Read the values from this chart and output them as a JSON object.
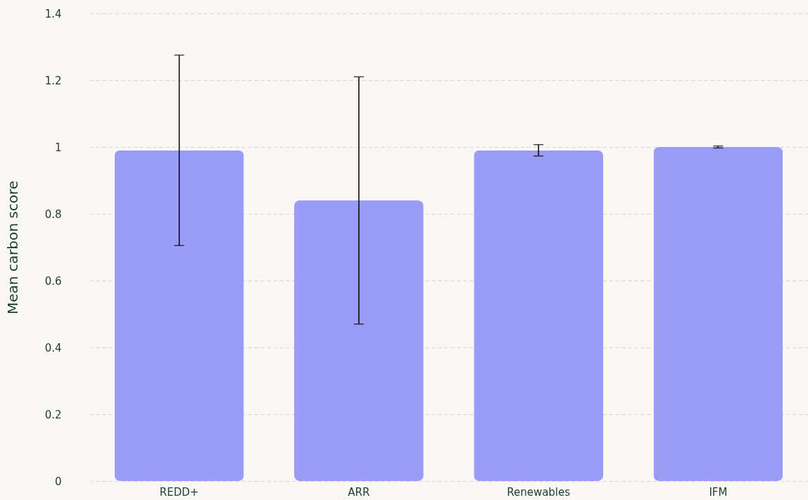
{
  "chart_data": {
    "type": "bar",
    "ylabel": "Mean carbon score",
    "categories": [
      "REDD+",
      "ARR",
      "Renewables",
      "IFM"
    ],
    "values": [
      0.99,
      0.84,
      0.99,
      1.0
    ],
    "errors": [
      0.285,
      0.37,
      0.017,
      0.003
    ],
    "color": "#9b9cf5",
    "ylim": [
      0,
      1.4
    ],
    "yticks": [
      0,
      0.2,
      0.4,
      0.6,
      0.8,
      1,
      1.2,
      1.4
    ],
    "grid": "y"
  }
}
